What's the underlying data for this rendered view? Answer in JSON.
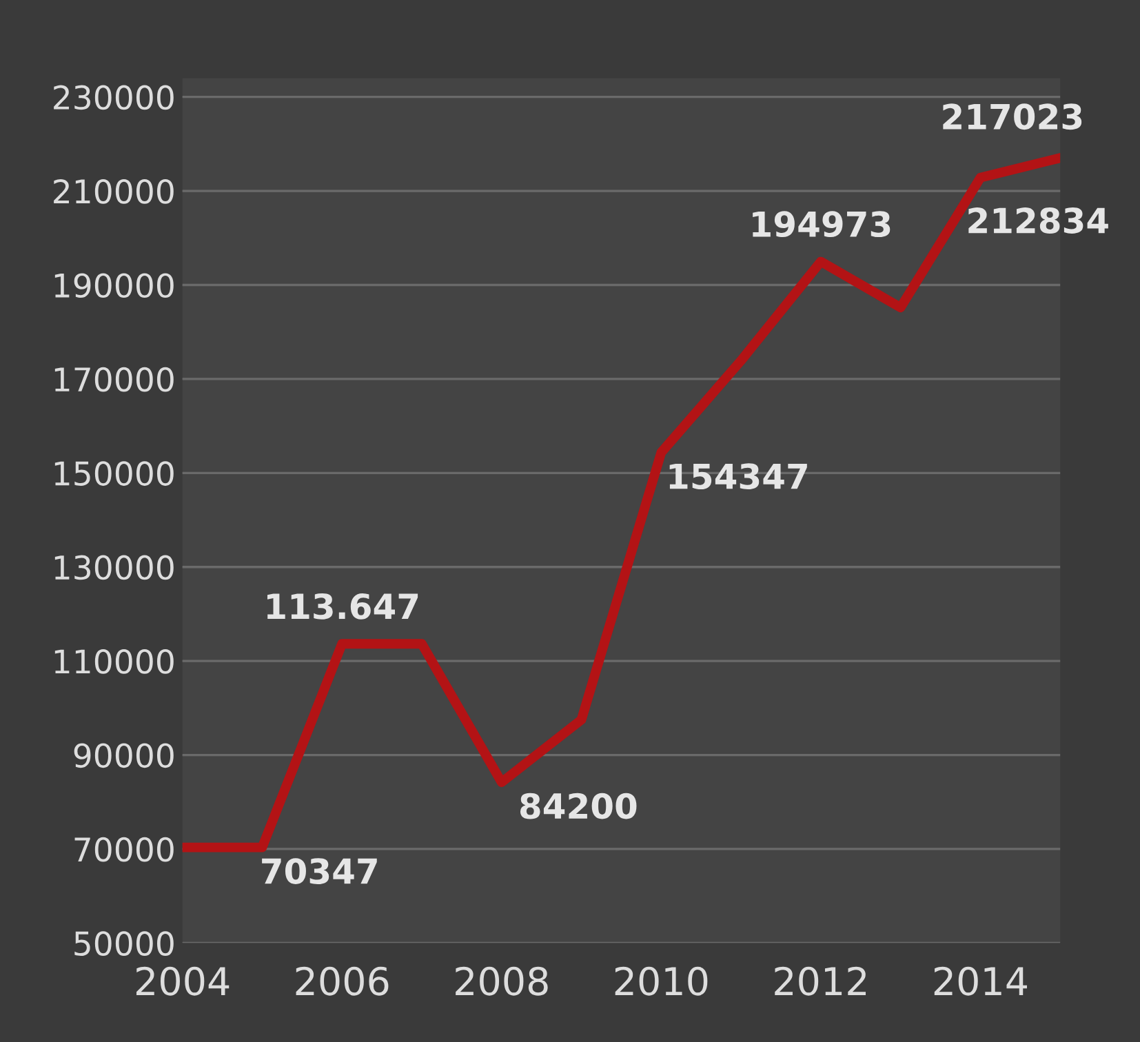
{
  "chart_data": {
    "type": "line",
    "x": [
      2004,
      2005,
      2006,
      2007,
      2008,
      2009,
      2010,
      2011,
      2012,
      2013,
      2014,
      2015
    ],
    "series": [
      {
        "color": "#b31315",
        "values": [
          70347,
          70347,
          113647,
          113647,
          84200,
          97500,
          154347,
          173900,
          194973,
          185200,
          212834,
          217023
        ],
        "value_labels": [
          null,
          "70347",
          "113.647",
          null,
          "84200",
          null,
          "154347",
          null,
          "194973",
          null,
          "212834",
          "217023"
        ]
      }
    ],
    "xlim": [
      2004,
      2015
    ],
    "ylim": [
      50000,
      234000
    ],
    "xticks": [
      2004,
      2006,
      2008,
      2010,
      2012,
      2014
    ],
    "yticks": [
      50000,
      70000,
      90000,
      110000,
      130000,
      150000,
      170000,
      190000,
      210000,
      230000
    ],
    "grid": "y",
    "marker": "none",
    "line_style": "solid",
    "legend": false
  }
}
